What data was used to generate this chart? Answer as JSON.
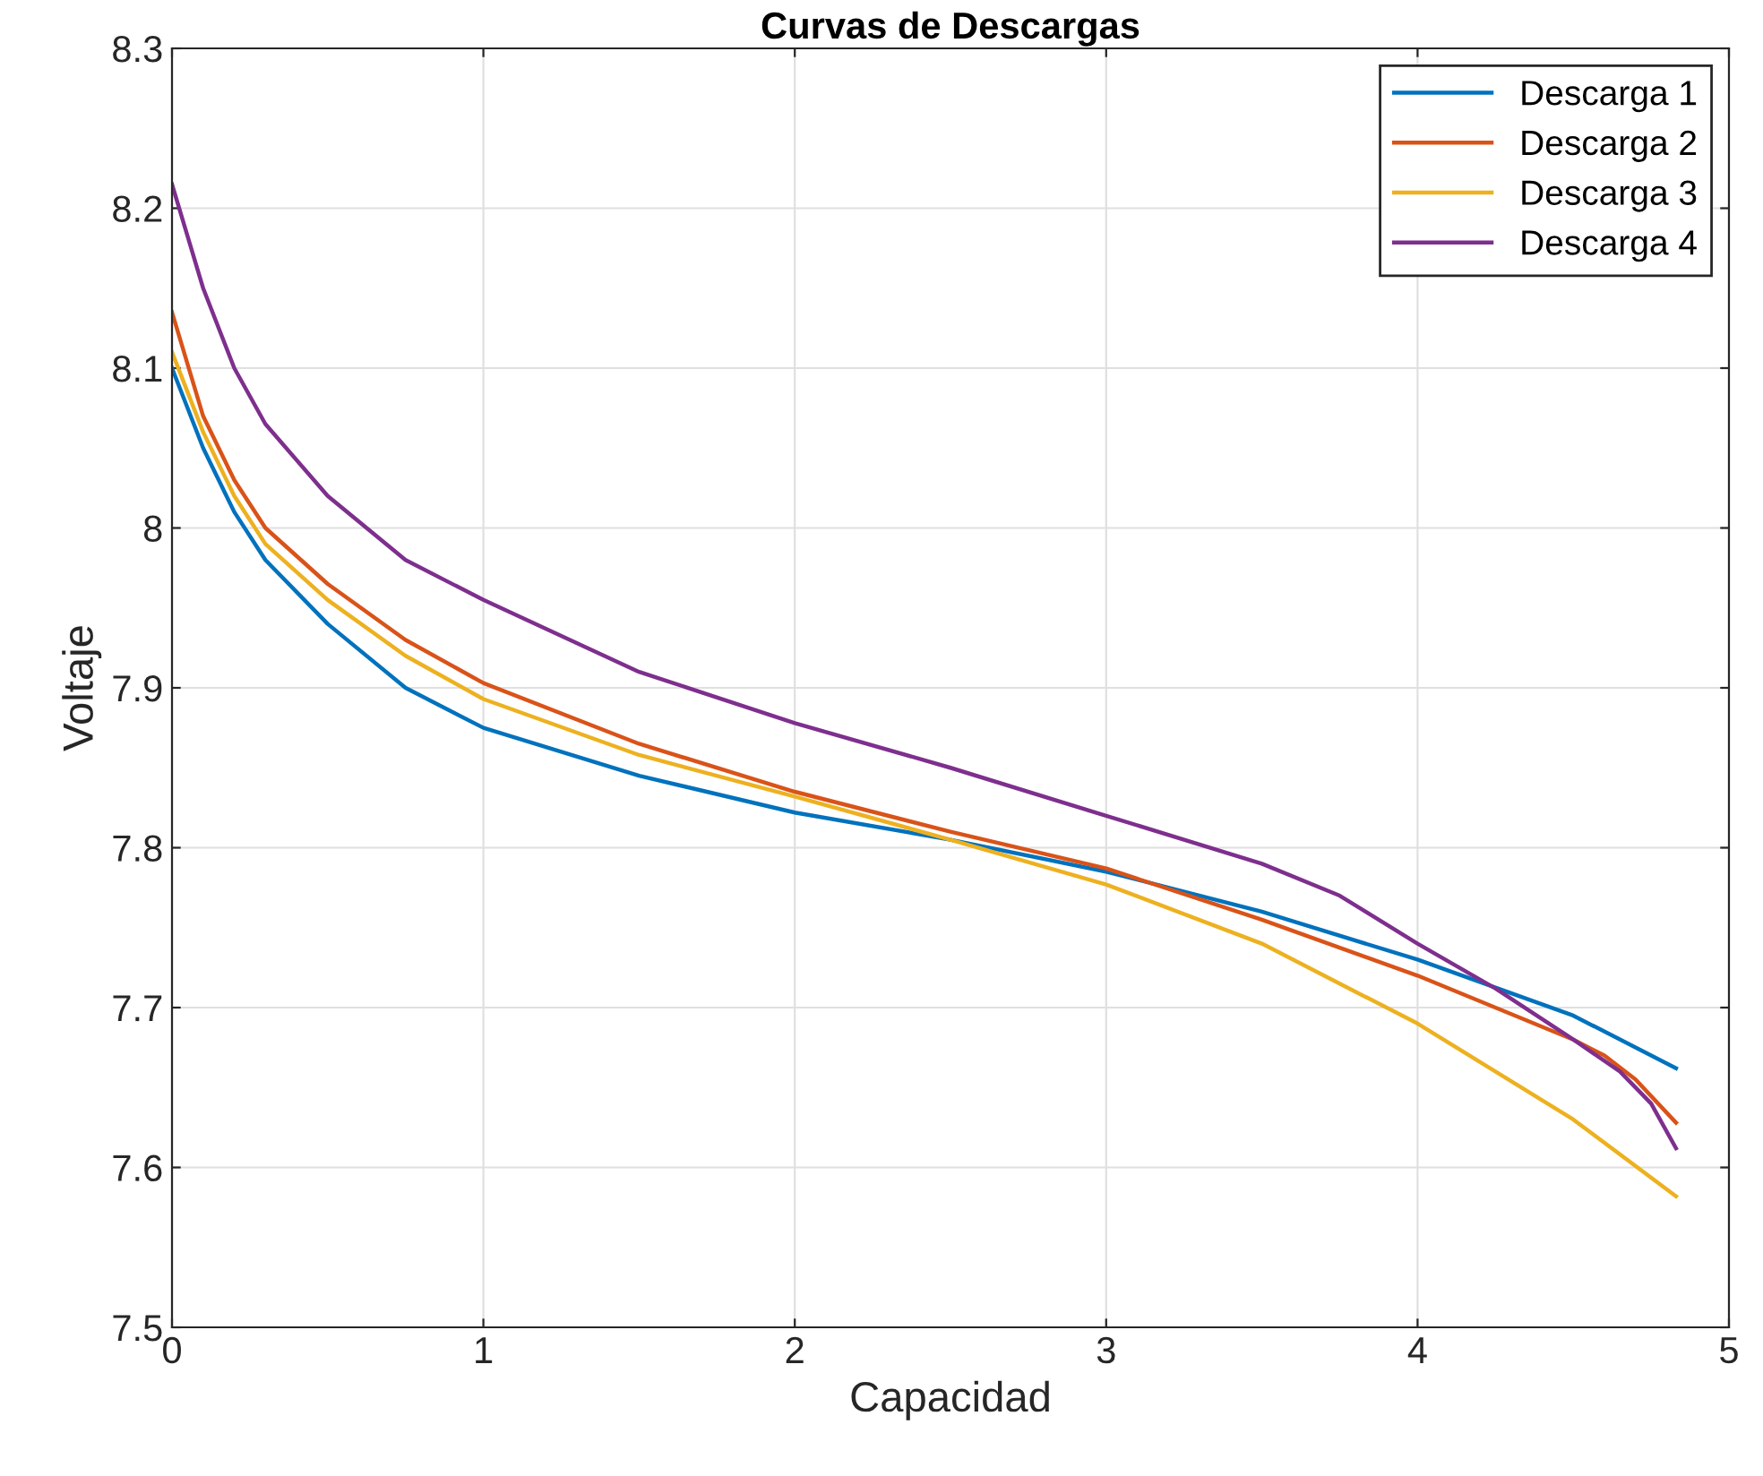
{
  "chart_data": {
    "type": "line",
    "title": "Curvas de Descargas",
    "xlabel": "Capacidad",
    "ylabel": "Voltaje",
    "xlim": [
      0,
      5
    ],
    "xticks": [
      0,
      1,
      2,
      3,
      4,
      5
    ],
    "ylim": [
      7.5,
      8.3
    ],
    "yticks": [
      7.5,
      7.6,
      7.7,
      7.8,
      7.9,
      8,
      8.1,
      8.2,
      8.3
    ],
    "grid": true,
    "legend": "top right",
    "marker": "none",
    "line_style": "solid",
    "series": [
      {
        "name": "Descarga 1",
        "color": "#0072bd",
        "x": [
          0,
          0.1,
          0.2,
          0.3,
          0.5,
          0.75,
          1,
          1.5,
          2,
          2.5,
          3,
          3.5,
          4,
          4.5,
          4.83
        ],
        "values": [
          8.1,
          8.05,
          8.01,
          7.98,
          7.94,
          7.9,
          7.875,
          7.845,
          7.822,
          7.805,
          7.785,
          7.76,
          7.73,
          7.695,
          7.662
        ]
      },
      {
        "name": "Descarga 2",
        "color": "#d95319",
        "x": [
          0,
          0.1,
          0.2,
          0.3,
          0.5,
          0.75,
          1,
          1.5,
          2,
          2.5,
          3,
          3.5,
          4,
          4.5,
          4.6,
          4.7,
          4.83
        ],
        "values": [
          8.135,
          8.07,
          8.03,
          8.0,
          7.965,
          7.93,
          7.903,
          7.865,
          7.835,
          7.81,
          7.787,
          7.755,
          7.72,
          7.68,
          7.67,
          7.655,
          7.628
        ]
      },
      {
        "name": "Descarga 3",
        "color": "#edb120",
        "x": [
          0,
          0.1,
          0.2,
          0.3,
          0.5,
          0.75,
          1,
          1.5,
          2,
          2.5,
          3,
          3.5,
          4,
          4.5,
          4.83
        ],
        "values": [
          8.11,
          8.06,
          8.02,
          7.99,
          7.955,
          7.92,
          7.893,
          7.858,
          7.832,
          7.805,
          7.777,
          7.74,
          7.69,
          7.63,
          7.582
        ]
      },
      {
        "name": "Descarga 4",
        "color": "#7e2f8e",
        "x": [
          0,
          0.1,
          0.2,
          0.3,
          0.5,
          0.75,
          1,
          1.5,
          2,
          2.5,
          3,
          3.5,
          3.75,
          4,
          4.25,
          4.5,
          4.65,
          4.75,
          4.83
        ],
        "values": [
          8.215,
          8.15,
          8.1,
          8.065,
          8.02,
          7.98,
          7.955,
          7.91,
          7.878,
          7.85,
          7.82,
          7.79,
          7.77,
          7.74,
          7.712,
          7.68,
          7.66,
          7.64,
          7.612
        ]
      }
    ]
  }
}
